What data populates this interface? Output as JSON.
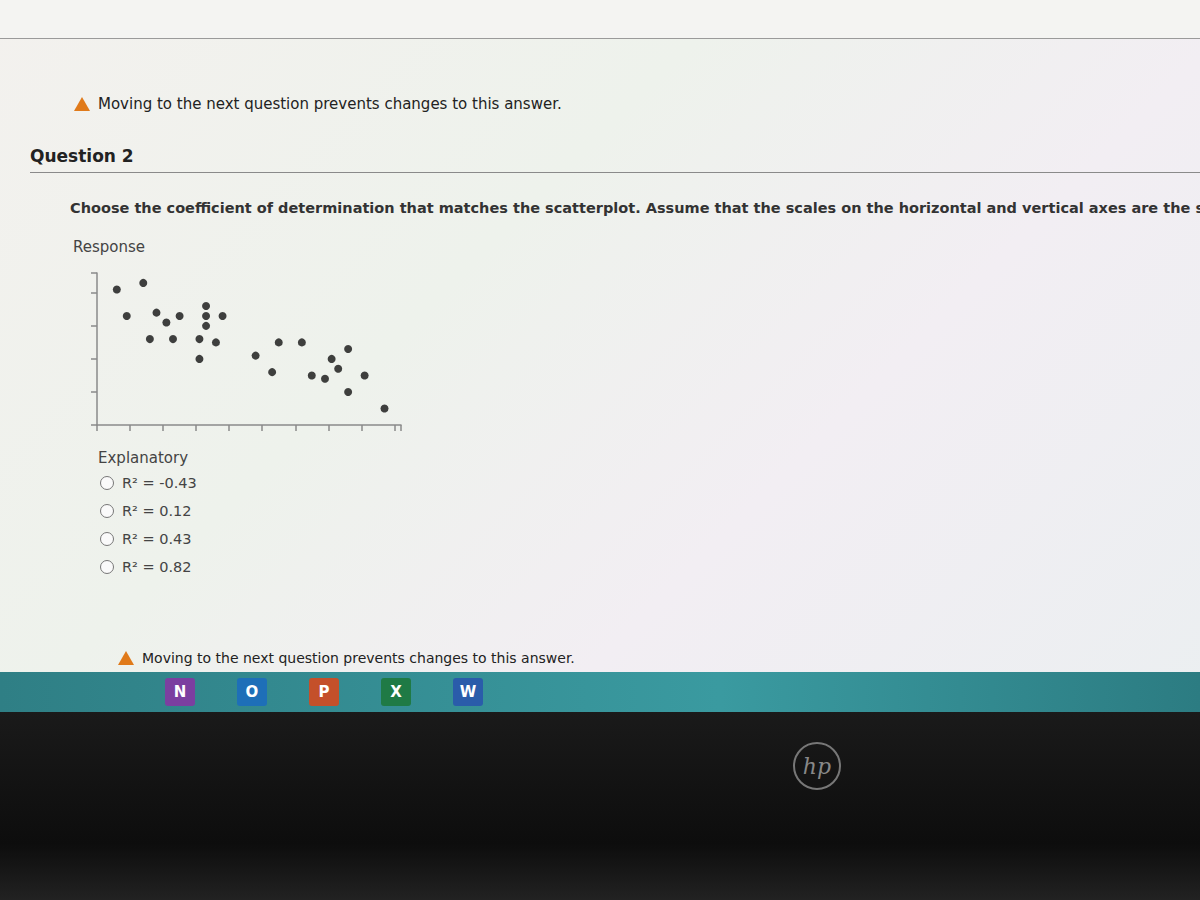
{
  "page": {
    "warning": "Moving to the next question prevents changes to this answer.",
    "question": "Question 2",
    "prompt": "Choose the coefficient of determination that matches the scatterplot. Assume that the scales on the horizontal and vertical axes are the same.",
    "options": [
      "R² = -0.43",
      "R² = 0.12",
      "R² = 0.43",
      "R² = 0.82"
    ],
    "taskbar": [
      "N",
      "O",
      "P",
      "X",
      "W"
    ],
    "logo": "hp"
  },
  "chart_data": {
    "type": "scatter",
    "x_label": "Explanatory",
    "y_label": "Response",
    "x": [
      0.6,
      1.4,
      0.9,
      1.8,
      2.1,
      2.5,
      3.3,
      3.3,
      3.3,
      3.8,
      1.6,
      2.3,
      3.1,
      3.6,
      3.1,
      4.8,
      5.5,
      6.2,
      7.6,
      7.1,
      5.3,
      6.5,
      7.3,
      6.9,
      8.1,
      7.6,
      8.7
    ],
    "values": [
      4.1,
      4.3,
      3.3,
      3.4,
      3.1,
      3.3,
      3.6,
      3.3,
      3.0,
      3.3,
      2.6,
      2.6,
      2.6,
      2.5,
      2.0,
      2.1,
      2.5,
      2.5,
      2.3,
      2.0,
      1.6,
      1.5,
      1.7,
      1.4,
      1.5,
      1.0,
      0.5
    ],
    "color": "#111111",
    "xlim": [
      0,
      9.2
    ],
    "xticks": [
      0,
      1,
      2,
      3,
      4,
      5,
      6,
      7,
      8,
      9
    ],
    "ylim": [
      0,
      4.6
    ],
    "yticks": [
      0,
      1,
      2,
      3,
      4
    ],
    "grid": false,
    "tick_labels": false
  }
}
